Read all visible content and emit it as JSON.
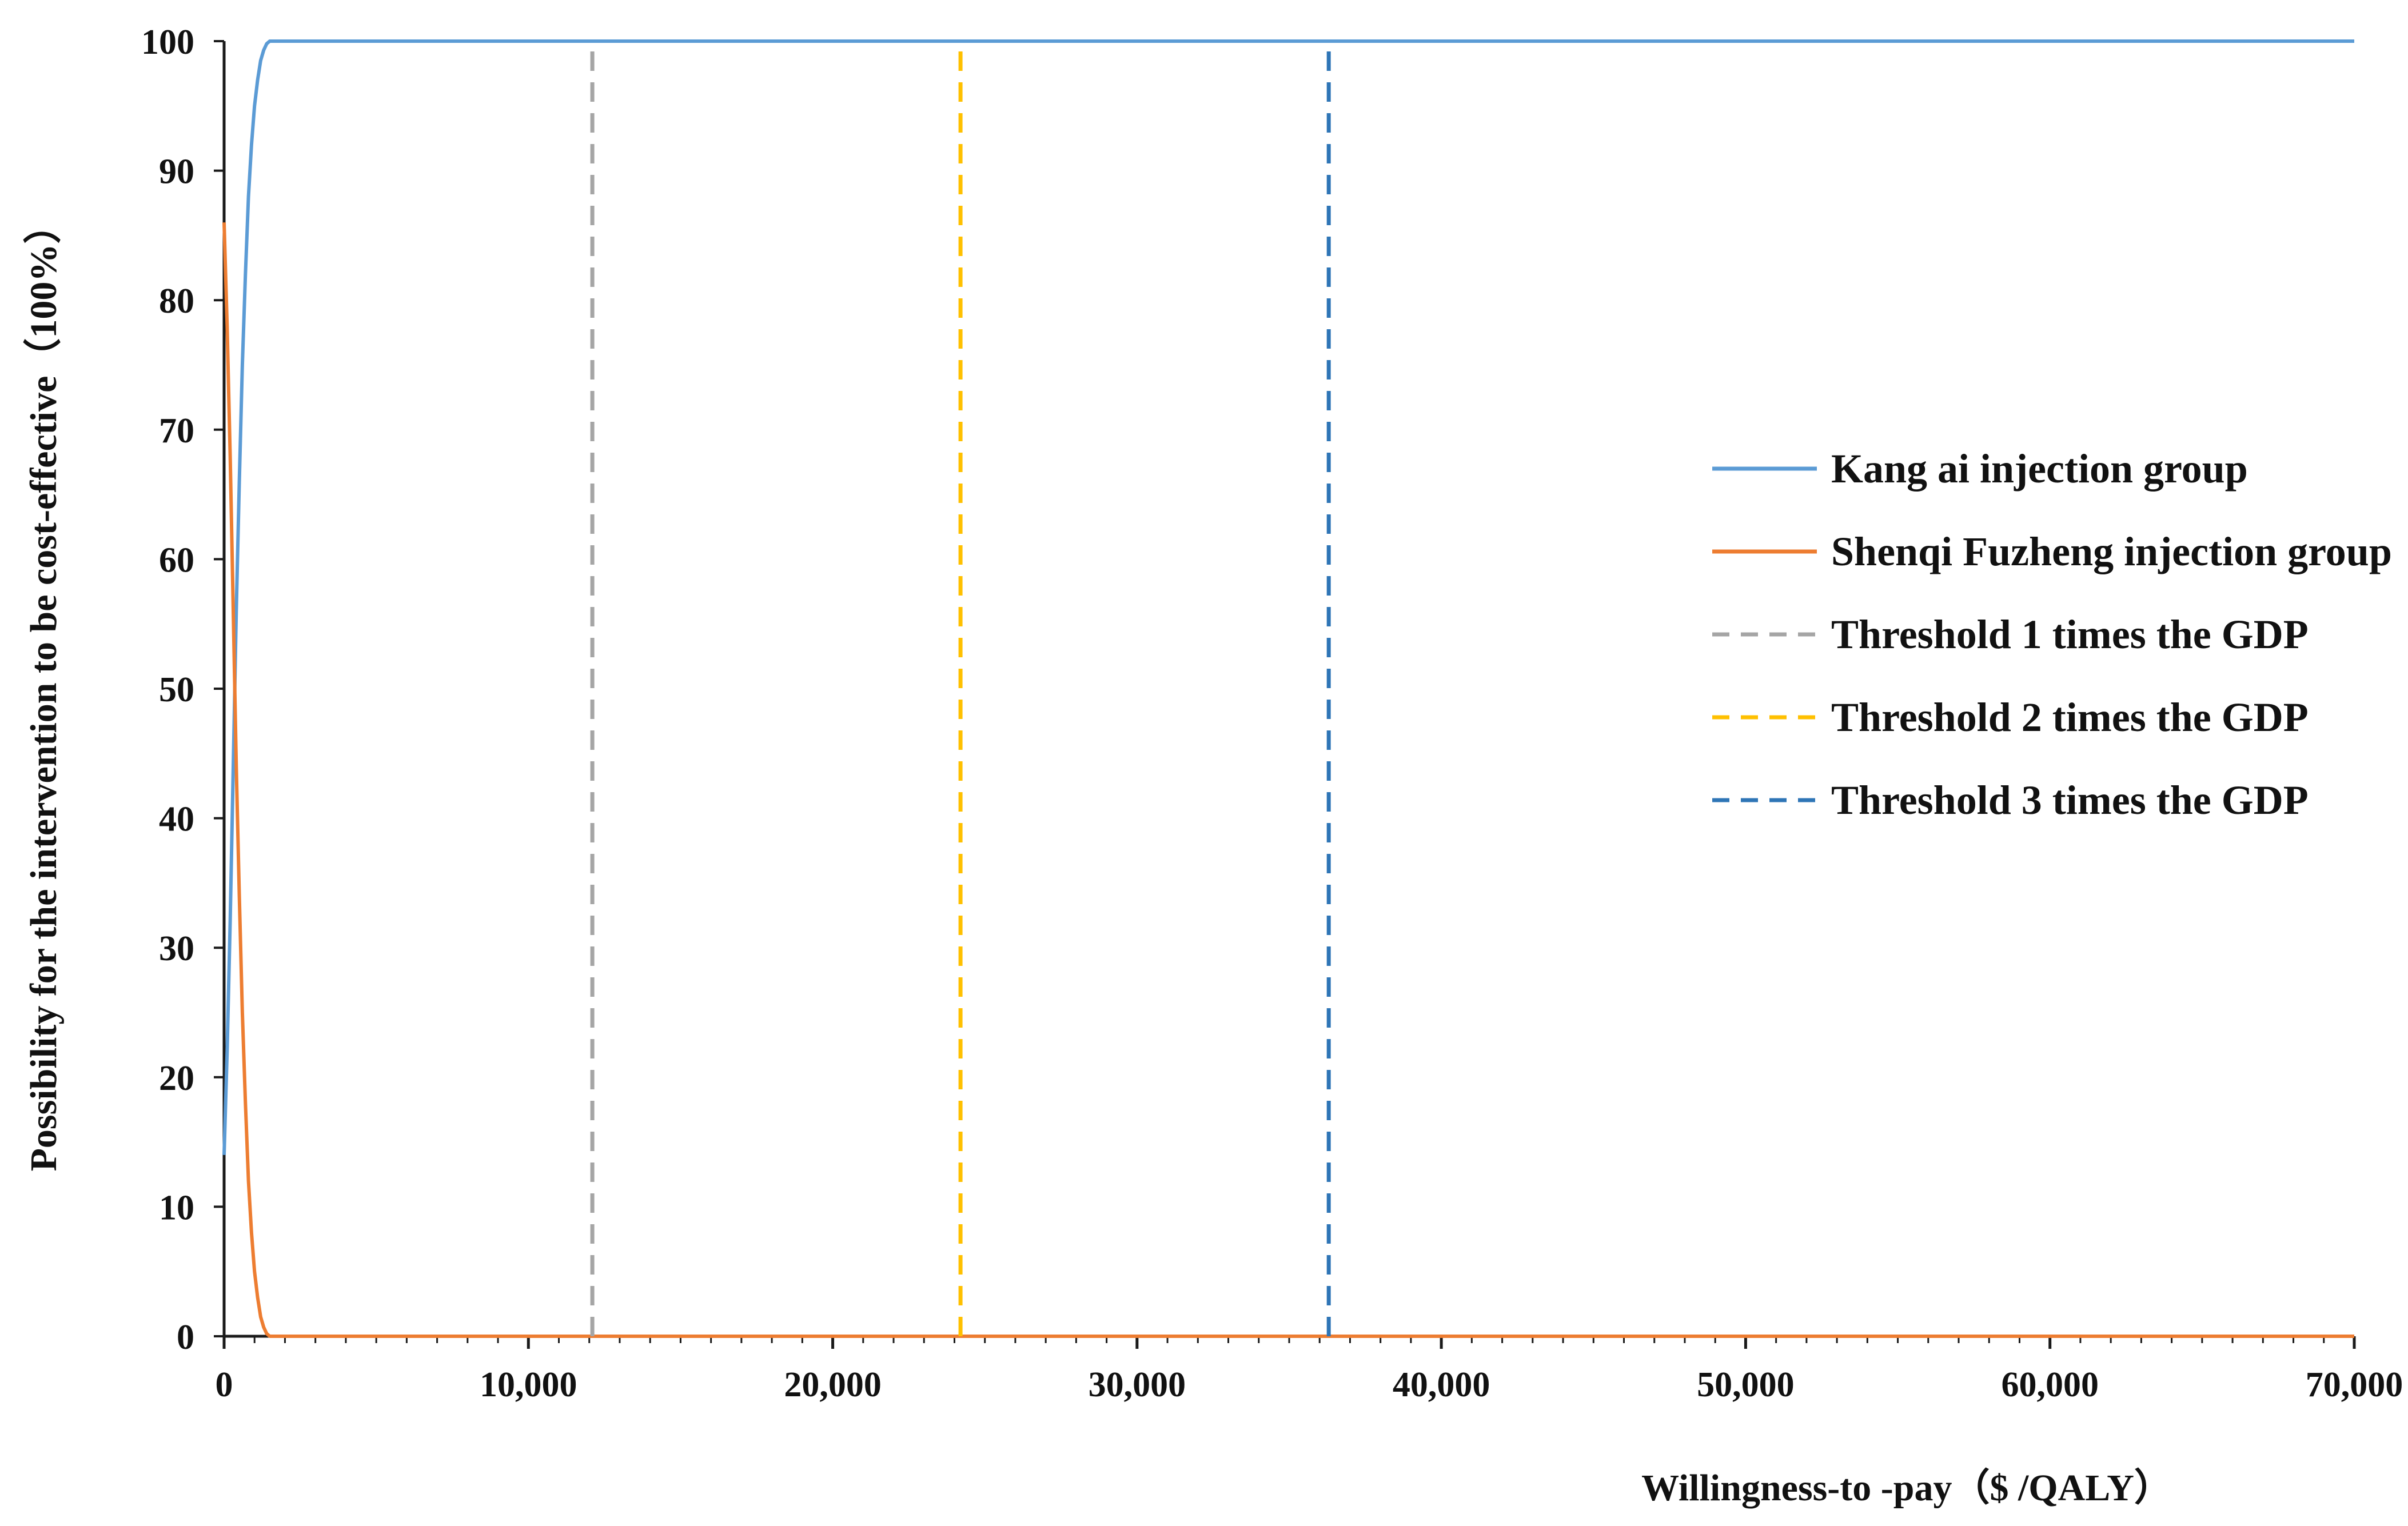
{
  "chart_data": {
    "type": "line",
    "title": "",
    "xlabel": "Willingness-to -pay（$ /QALY）",
    "ylabel": "Possibility for the intervention to be cost-effective（100%）",
    "xlim": [
      0,
      70000
    ],
    "ylim": [
      0,
      100
    ],
    "x_ticks": [
      0,
      10000,
      20000,
      30000,
      40000,
      50000,
      60000,
      70000
    ],
    "x_tick_labels": [
      "0",
      "10,000",
      "20,000",
      "30,000",
      "40,000",
      "50,000",
      "60,000",
      "70,000"
    ],
    "y_ticks": [
      0,
      10,
      20,
      30,
      40,
      50,
      60,
      70,
      80,
      90,
      100
    ],
    "y_tick_labels": [
      "0",
      "10",
      "20",
      "30",
      "40",
      "50",
      "60",
      "70",
      "80",
      "90",
      "100"
    ],
    "grid": false,
    "legend_position": "right",
    "series": [
      {
        "name": "Kang ai injection group",
        "color": "#5b9bd5",
        "style": "solid",
        "x": [
          0,
          100,
          200,
          300,
          400,
          500,
          600,
          700,
          800,
          900,
          1000,
          1100,
          1200,
          1300,
          1400,
          1500,
          2600,
          70000
        ],
        "y": [
          14,
          22,
          32,
          44,
          56,
          66,
          75,
          82,
          88,
          92,
          95,
          97,
          98.5,
          99.3,
          99.8,
          100,
          100,
          100
        ]
      },
      {
        "name": "Shenqi Fuzheng injection group",
        "color": "#ed7d31",
        "style": "solid",
        "x": [
          0,
          100,
          200,
          300,
          400,
          500,
          600,
          700,
          800,
          900,
          1000,
          1100,
          1200,
          1300,
          1400,
          1500,
          2600,
          70000
        ],
        "y": [
          86,
          78,
          68,
          56,
          44,
          34,
          25,
          18,
          12,
          8,
          5,
          3,
          1.5,
          0.7,
          0.2,
          0,
          0,
          0
        ]
      },
      {
        "name": "Threshold 1 times the GDP",
        "color": "#a5a5a5",
        "style": "dashed",
        "x": [
          12100,
          12100
        ],
        "y": [
          0,
          100
        ]
      },
      {
        "name": "Threshold 2 times the GDP",
        "color": "#ffc000",
        "style": "dashed",
        "x": [
          24200,
          24200
        ],
        "y": [
          0,
          100
        ]
      },
      {
        "name": "Threshold 3 times the GDP",
        "color": "#2e75b6",
        "style": "dashed",
        "x": [
          36300,
          36300
        ],
        "y": [
          0,
          100
        ]
      }
    ]
  }
}
